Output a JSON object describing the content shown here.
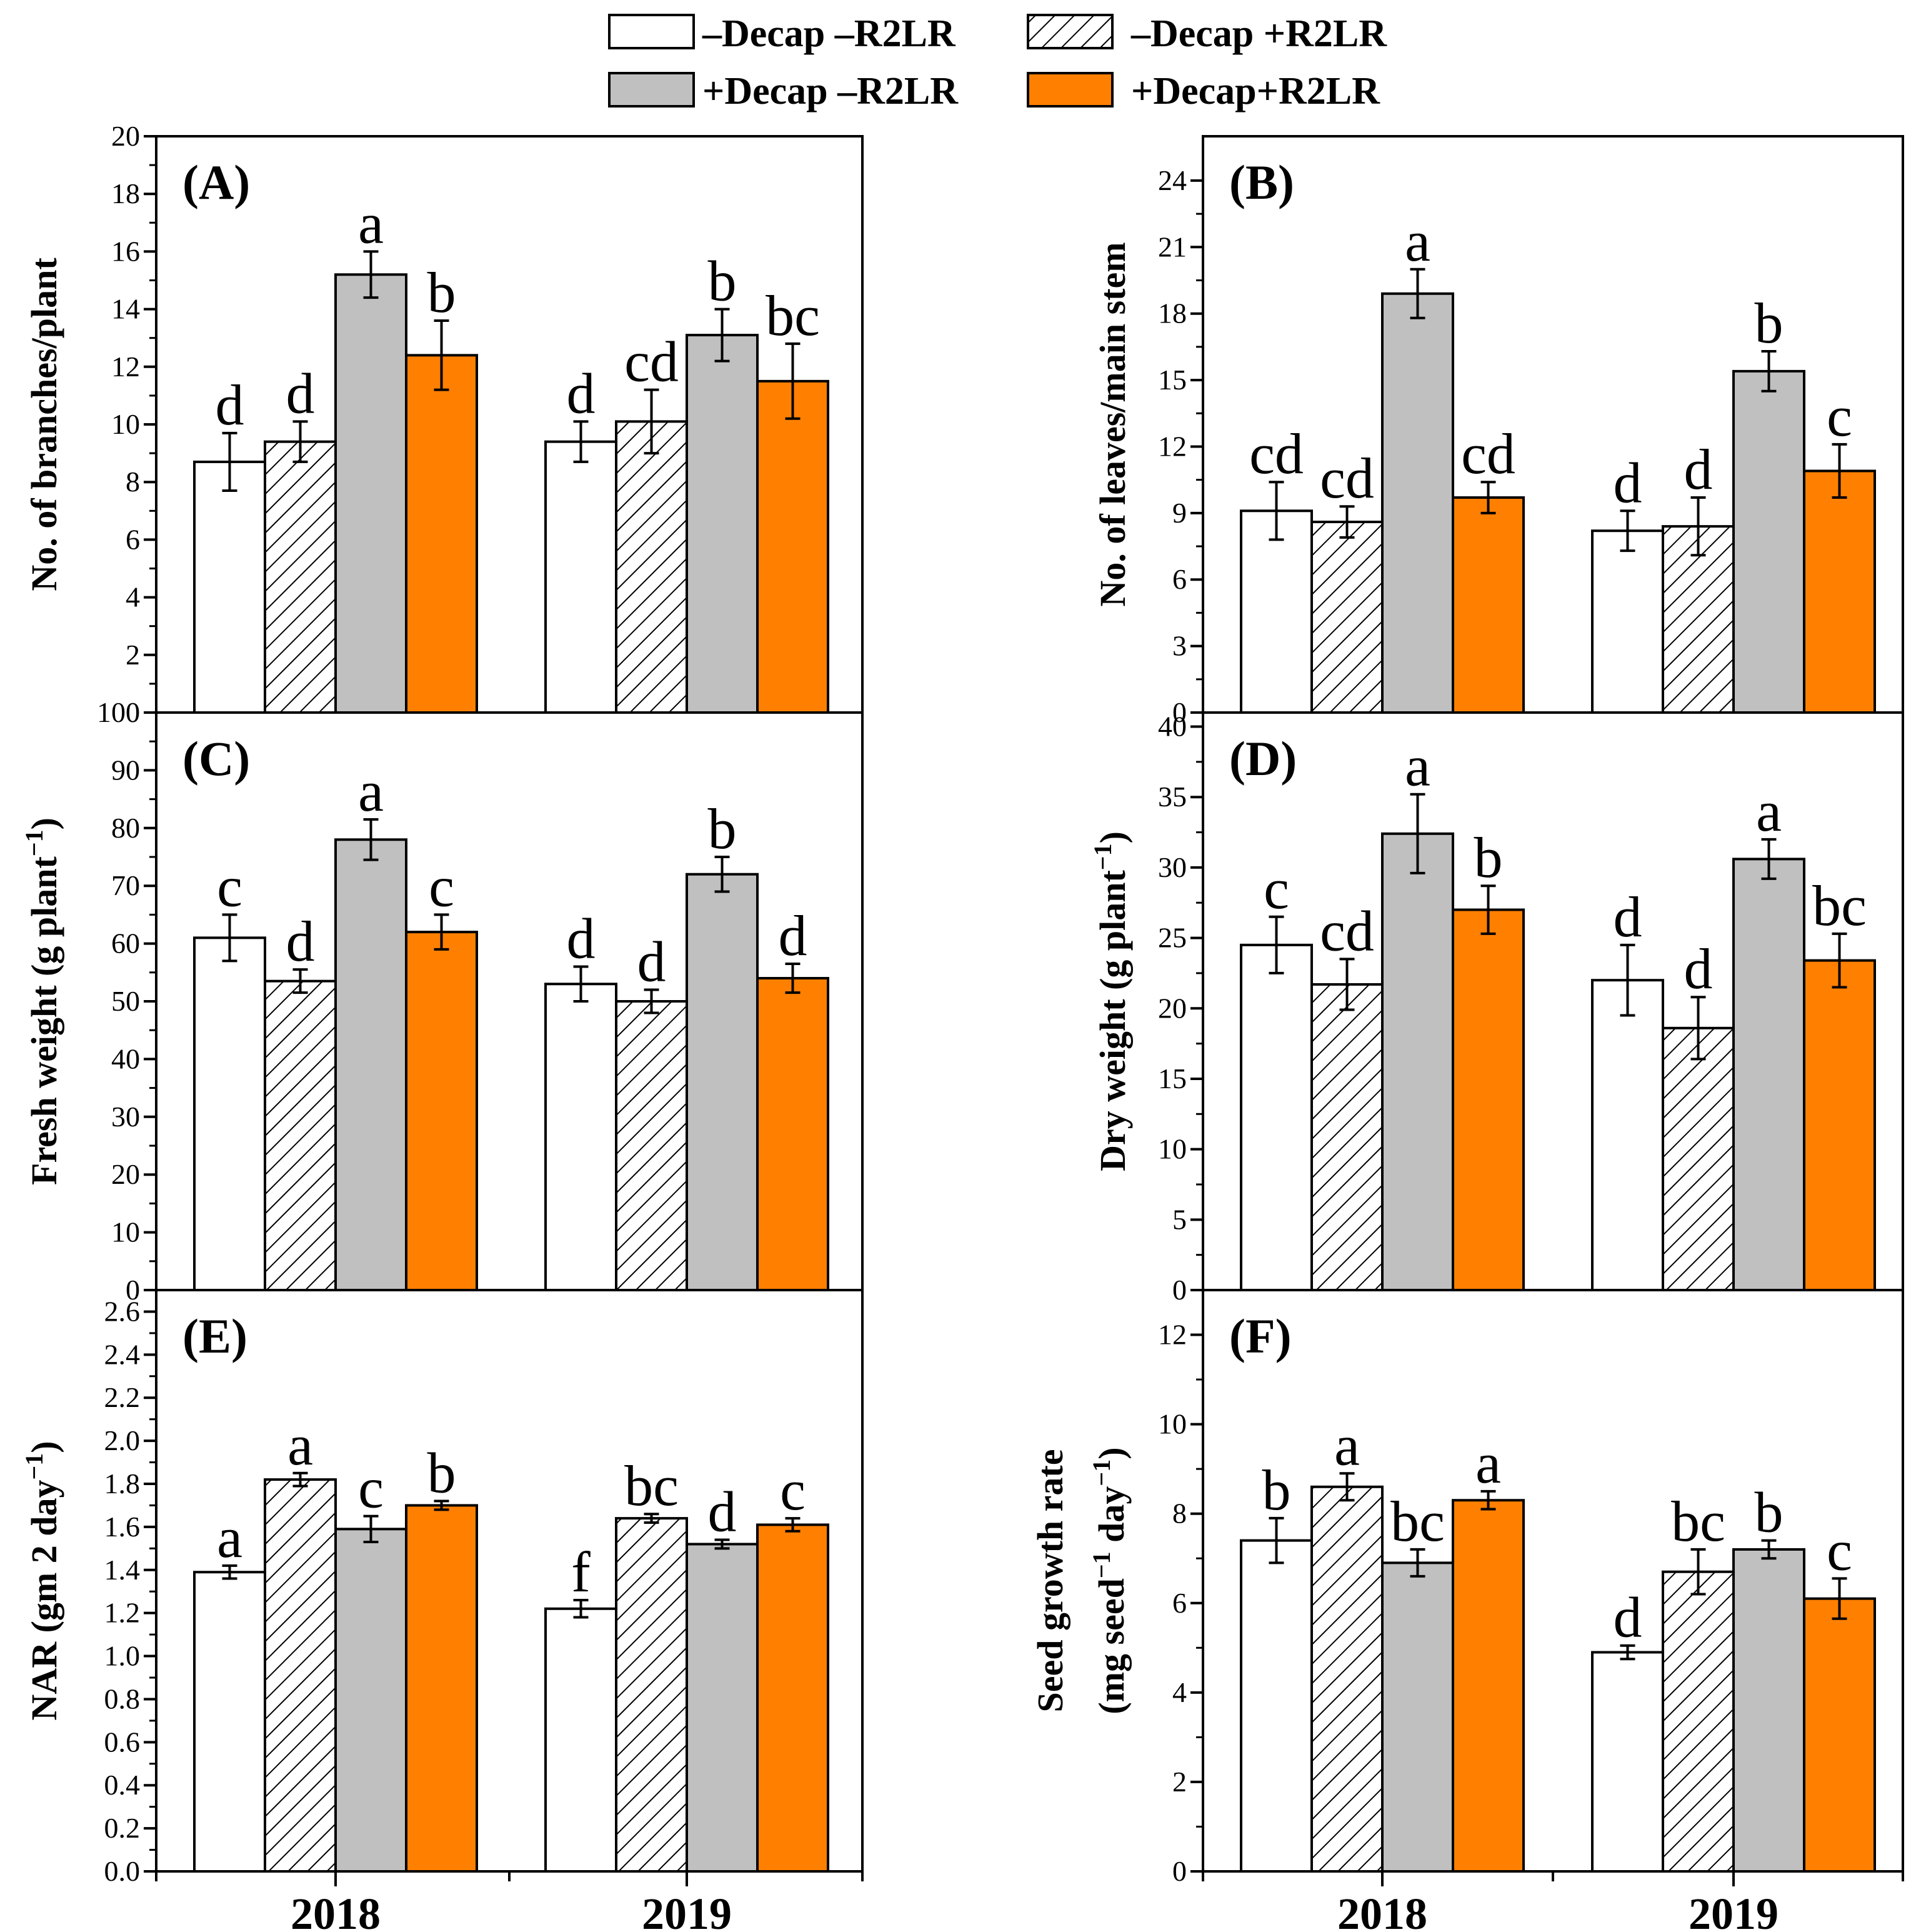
{
  "legend": {
    "items": [
      {
        "key": "s1",
        "label": "–Decap  –R2LR"
      },
      {
        "key": "s2",
        "label": "–Decap +R2LR"
      },
      {
        "key": "s3",
        "label": "+Decap  –R2LR"
      },
      {
        "key": "s4",
        "label": "+Decap+R2LR"
      }
    ]
  },
  "colors": {
    "s1": "#ffffff",
    "s2": "hatch",
    "s3": "#c0c0c0",
    "s4": "#ff8000"
  },
  "chart_data": [
    {
      "id": "A",
      "panel_label": "(A)",
      "type": "bar",
      "ylabel": "No. of branches/plant",
      "categories": [
        "2018",
        "2019"
      ],
      "ylim": [
        0,
        20
      ],
      "yticks": [
        "0",
        "2",
        "4",
        "6",
        "8",
        "10",
        "12",
        "14",
        "16",
        "18",
        "20"
      ],
      "series": [
        {
          "name": "–Decap –R2LR",
          "values": [
            8.7,
            9.4
          ],
          "errors": [
            1.0,
            0.7
          ],
          "letters": [
            "d",
            "d"
          ]
        },
        {
          "name": "–Decap +R2LR",
          "values": [
            9.4,
            10.1
          ],
          "errors": [
            0.7,
            1.1
          ],
          "letters": [
            "d",
            "cd"
          ]
        },
        {
          "name": "+Decap –R2LR",
          "values": [
            15.2,
            13.1
          ],
          "errors": [
            0.8,
            0.9
          ],
          "letters": [
            "a",
            "b"
          ]
        },
        {
          "name": "+Decap +R2LR",
          "values": [
            12.4,
            11.5
          ],
          "errors": [
            1.2,
            1.3
          ],
          "letters": [
            "b",
            "bc"
          ]
        }
      ]
    },
    {
      "id": "B",
      "panel_label": "(B)",
      "type": "bar",
      "ylabel": "No. of leaves/main stem",
      "categories": [
        "2018",
        "2019"
      ],
      "ylim": [
        0,
        26
      ],
      "yticks": [
        "0",
        "3",
        "6",
        "9",
        "12",
        "15",
        "18",
        "21",
        "24"
      ],
      "series": [
        {
          "name": "–Decap –R2LR",
          "values": [
            9.1,
            8.2
          ],
          "errors": [
            1.3,
            0.9
          ],
          "letters": [
            "cd",
            "d"
          ]
        },
        {
          "name": "–Decap +R2LR",
          "values": [
            8.6,
            8.4
          ],
          "errors": [
            0.7,
            1.3
          ],
          "letters": [
            "cd",
            "d"
          ]
        },
        {
          "name": "+Decap –R2LR",
          "values": [
            18.9,
            15.4
          ],
          "errors": [
            1.1,
            0.9
          ],
          "letters": [
            "a",
            "b"
          ]
        },
        {
          "name": "+Decap +R2LR",
          "values": [
            9.7,
            10.9
          ],
          "errors": [
            0.7,
            1.2
          ],
          "letters": [
            "cd",
            "c"
          ]
        }
      ]
    },
    {
      "id": "C",
      "panel_label": "(C)",
      "type": "bar",
      "ylabel": "Fresh weight (g plant",
      "ylabel_sup": "−1",
      "ylabel_end": ")",
      "categories": [
        "2018",
        "2019"
      ],
      "ylim": [
        0,
        100
      ],
      "yticks": [
        "0",
        "10",
        "20",
        "30",
        "40",
        "50",
        "60",
        "70",
        "80",
        "90",
        "100"
      ],
      "series": [
        {
          "name": "–Decap –R2LR",
          "values": [
            61.0,
            53.0
          ],
          "errors": [
            4.0,
            3.0
          ],
          "letters": [
            "c",
            "d"
          ]
        },
        {
          "name": "–Decap +R2LR",
          "values": [
            53.5,
            50.0
          ],
          "errors": [
            2.0,
            2.0
          ],
          "letters": [
            "d",
            "d"
          ]
        },
        {
          "name": "+Decap –R2LR",
          "values": [
            78.0,
            72.0
          ],
          "errors": [
            3.5,
            3.0
          ],
          "letters": [
            "a",
            "b"
          ]
        },
        {
          "name": "+Decap +R2LR",
          "values": [
            62.0,
            54.0
          ],
          "errors": [
            3.0,
            2.5
          ],
          "letters": [
            "c",
            "d"
          ]
        }
      ]
    },
    {
      "id": "D",
      "panel_label": "(D)",
      "type": "bar",
      "ylabel": "Dry weight (g plant",
      "ylabel_sup": "−1",
      "ylabel_end": ")",
      "categories": [
        "2018",
        "2019"
      ],
      "ylim": [
        0,
        41
      ],
      "yticks": [
        "0",
        "5",
        "10",
        "15",
        "20",
        "25",
        "30",
        "35",
        "40"
      ],
      "series": [
        {
          "name": "–Decap –R2LR",
          "values": [
            24.5,
            22.0
          ],
          "errors": [
            2.0,
            2.5
          ],
          "letters": [
            "c",
            "d"
          ]
        },
        {
          "name": "–Decap +R2LR",
          "values": [
            21.7,
            18.6
          ],
          "errors": [
            1.8,
            2.2
          ],
          "letters": [
            "cd",
            "d"
          ]
        },
        {
          "name": "+Decap –R2LR",
          "values": [
            32.4,
            30.6
          ],
          "errors": [
            2.8,
            1.4
          ],
          "letters": [
            "a",
            "a"
          ]
        },
        {
          "name": "+Decap +R2LR",
          "values": [
            27.0,
            23.4
          ],
          "errors": [
            1.7,
            1.9
          ],
          "letters": [
            "b",
            "bc"
          ]
        }
      ]
    },
    {
      "id": "E",
      "panel_label": "(E)",
      "type": "bar",
      "ylabel": "NAR (gm 2 day",
      "ylabel_sup": "−1",
      "ylabel_end": ")",
      "categories": [
        "2018",
        "2019"
      ],
      "ylim": [
        0,
        2.7
      ],
      "yticks": [
        "0.0",
        "0.2",
        "0.4",
        "0.6",
        "0.8",
        "1.0",
        "1.2",
        "1.4",
        "1.6",
        "1.8",
        "2.0",
        "2.2",
        "2.4",
        "2.6"
      ],
      "series": [
        {
          "name": "–Decap –R2LR",
          "values": [
            1.39,
            1.22
          ],
          "errors": [
            0.03,
            0.04
          ],
          "letters": [
            "a",
            "f"
          ]
        },
        {
          "name": "–Decap +R2LR",
          "values": [
            1.82,
            1.64
          ],
          "errors": [
            0.03,
            0.02
          ],
          "letters": [
            "a",
            "bc"
          ]
        },
        {
          "name": "+Decap –R2LR",
          "values": [
            1.59,
            1.52
          ],
          "errors": [
            0.06,
            0.02
          ],
          "letters": [
            "c",
            "d"
          ]
        },
        {
          "name": "+Decap +R2LR",
          "values": [
            1.7,
            1.61
          ],
          "errors": [
            0.02,
            0.03
          ],
          "letters": [
            "b",
            "c"
          ]
        }
      ]
    },
    {
      "id": "F",
      "panel_label": "(F)",
      "type": "bar",
      "ylabel": "Seed growth rate",
      "ylabel2": "(mg seed",
      "ylabel2_sup1": "−1",
      "ylabel2_mid": " day",
      "ylabel2_sup2": "−1",
      "ylabel2_end": ")",
      "categories": [
        "2018",
        "2019"
      ],
      "ylim": [
        0,
        13
      ],
      "yticks": [
        "0",
        "2",
        "4",
        "6",
        "8",
        "10",
        "12"
      ],
      "series": [
        {
          "name": "–Decap –R2LR",
          "values": [
            7.4,
            4.9
          ],
          "errors": [
            0.5,
            0.15
          ],
          "letters": [
            "b",
            "d"
          ]
        },
        {
          "name": "–Decap +R2LR",
          "values": [
            8.6,
            6.7
          ],
          "errors": [
            0.3,
            0.5
          ],
          "letters": [
            "a",
            "bc"
          ]
        },
        {
          "name": "+Decap –R2LR",
          "values": [
            6.9,
            7.2
          ],
          "errors": [
            0.3,
            0.2
          ],
          "letters": [
            "bc",
            "b"
          ]
        },
        {
          "name": "+Decap +R2LR",
          "values": [
            8.3,
            6.1
          ],
          "errors": [
            0.2,
            0.45
          ],
          "letters": [
            "a",
            "c"
          ]
        }
      ]
    }
  ]
}
